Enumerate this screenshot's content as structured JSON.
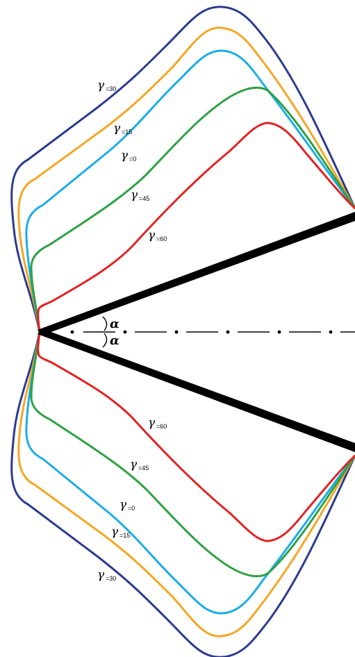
{
  "colors": {
    "gamma_30": "#2b3a8f",
    "gamma_15": "#f5a623",
    "gamma_0": "#1bace6",
    "gamma_45": "#2ea043",
    "gamma_60": "#e32020",
    "wedge": "#000000"
  },
  "angle_symbol": "α",
  "gamma_symbol": "γ",
  "upper_labels": [
    {
      "id": "30",
      "sub": "=30"
    },
    {
      "id": "15",
      "sub": "=15"
    },
    {
      "id": "0",
      "sub": "=0"
    },
    {
      "id": "45",
      "sub": "=45"
    },
    {
      "id": "60",
      "sub": "=60"
    }
  ],
  "lower_labels": [
    {
      "id": "60",
      "sub": "=60"
    },
    {
      "id": "45",
      "sub": "=45"
    },
    {
      "id": "0",
      "sub": "=0"
    },
    {
      "id": "15",
      "sub": "=15"
    },
    {
      "id": "30",
      "sub": "=30"
    }
  ]
}
